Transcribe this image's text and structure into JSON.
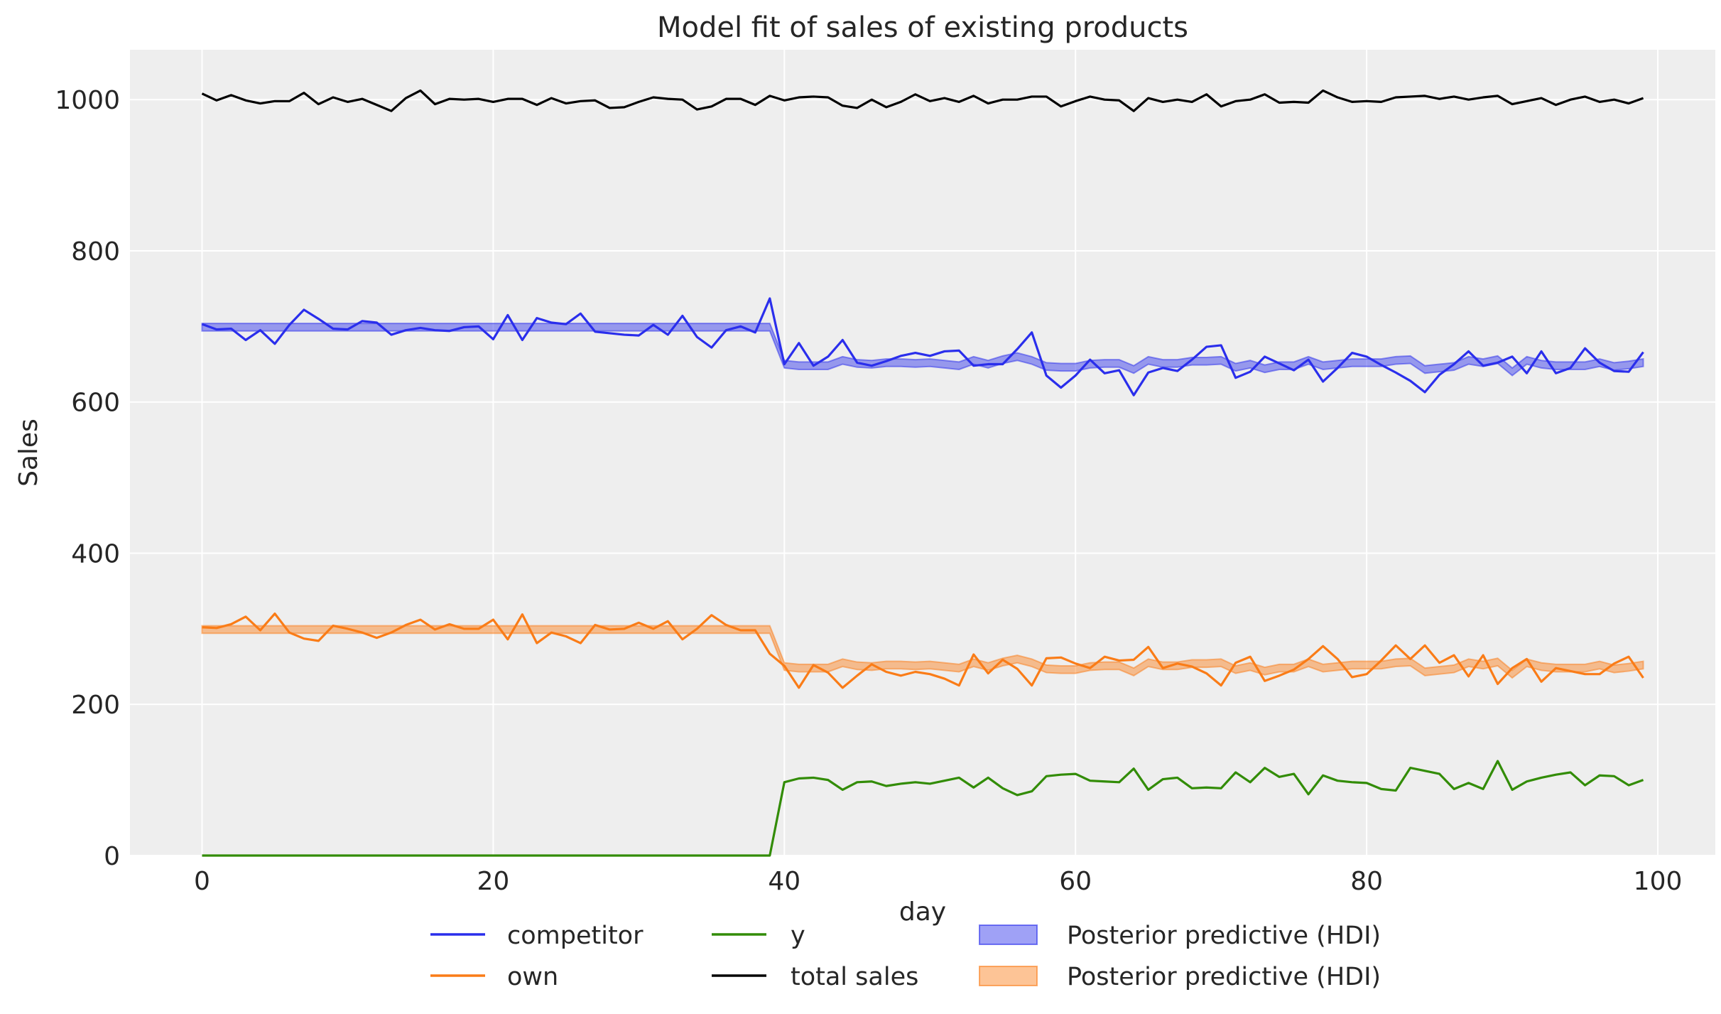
{
  "chart_data": {
    "type": "line",
    "title": "Model fit of sales of existing products",
    "xlabel": "day",
    "ylabel": "Sales",
    "xlim": [
      -4.95,
      103.95
    ],
    "ylim": [
      0,
      1066
    ],
    "xticks": [
      0,
      20,
      40,
      60,
      80,
      100
    ],
    "yticks": [
      0,
      200,
      400,
      600,
      800,
      1000
    ],
    "grid": true,
    "legend_placement": "bottom-center",
    "background": "#eeeeee",
    "hdi_half_width": 5,
    "series": [
      {
        "name": "competitor",
        "color": "#2a2eec",
        "values": [
          703,
          696,
          697,
          682,
          695,
          677,
          702,
          722,
          710,
          697,
          696,
          707,
          705,
          689,
          695,
          698,
          695,
          694,
          699,
          700,
          683,
          715,
          682,
          711,
          705,
          703,
          717,
          693,
          691,
          689,
          688,
          702,
          689,
          714,
          686,
          672,
          695,
          700,
          692,
          737,
          650,
          678,
          648,
          660,
          682,
          652,
          648,
          654,
          661,
          665,
          661,
          667,
          668,
          648,
          650,
          650,
          670,
          692,
          635,
          619,
          635,
          656,
          638,
          642,
          609,
          639,
          645,
          641,
          656,
          673,
          675,
          632,
          640,
          660,
          651,
          642,
          656,
          627,
          645,
          665,
          660,
          649,
          639,
          628,
          613,
          636,
          650,
          667,
          648,
          652,
          660,
          638,
          667,
          638,
          645,
          671,
          652,
          641,
          640,
          666
        ]
      },
      {
        "name": "own",
        "color": "#fa7c17",
        "values": [
          302,
          301,
          306,
          316,
          298,
          320,
          295,
          287,
          284,
          304,
          300,
          295,
          288,
          295,
          305,
          312,
          299,
          306,
          300,
          300,
          312,
          286,
          319,
          281,
          295,
          290,
          281,
          305,
          299,
          300,
          308,
          300,
          310,
          286,
          300,
          318,
          305,
          298,
          298,
          267,
          251,
          222,
          252,
          242,
          222,
          238,
          253,
          243,
          238,
          243,
          240,
          234,
          225,
          266,
          241,
          259,
          247,
          225,
          261,
          262,
          254,
          248,
          263,
          258,
          259,
          276,
          248,
          254,
          250,
          241,
          225,
          255,
          263,
          231,
          238,
          246,
          260,
          277,
          260,
          236,
          240,
          258,
          278,
          260,
          278,
          255,
          265,
          237,
          265,
          227,
          248,
          260,
          230,
          248,
          244,
          240,
          240,
          254,
          263,
          235
        ]
      },
      {
        "name": "y",
        "color": "#328c06",
        "values": [
          0,
          0,
          0,
          0,
          0,
          0,
          0,
          0,
          0,
          0,
          0,
          0,
          0,
          0,
          0,
          0,
          0,
          0,
          0,
          0,
          0,
          0,
          0,
          0,
          0,
          0,
          0,
          0,
          0,
          0,
          0,
          0,
          0,
          0,
          0,
          0,
          0,
          0,
          0,
          0,
          97,
          102,
          103,
          100,
          87,
          97,
          98,
          92,
          95,
          97,
          95,
          99,
          103,
          90,
          103,
          89,
          80,
          85,
          105,
          107,
          108,
          99,
          98,
          97,
          115,
          87,
          101,
          103,
          89,
          90,
          89,
          110,
          97,
          116,
          104,
          108,
          81,
          106,
          99,
          97,
          96,
          88,
          86,
          116,
          112,
          108,
          88,
          96,
          88,
          125,
          87,
          98,
          103,
          107,
          110,
          93,
          106,
          105,
          93,
          100
        ]
      },
      {
        "name": "total sales",
        "color": "#000000",
        "values": [
          1008,
          999,
          1006,
          999,
          995,
          998,
          998,
          1009,
          994,
          1003,
          997,
          1001,
          993,
          985,
          1002,
          1012,
          994,
          1001,
          1000,
          1001,
          997,
          1001,
          1001,
          993,
          1002,
          995,
          998,
          999,
          989,
          990,
          997,
          1003,
          1001,
          1000,
          987,
          991,
          1001,
          1001,
          993,
          1005,
          999,
          1003,
          1004,
          1003,
          992,
          989,
          1000,
          990,
          997,
          1007,
          998,
          1002,
          997,
          1005,
          995,
          1000,
          1000,
          1004,
          1004,
          991,
          998,
          1004,
          1000,
          999,
          985,
          1002,
          997,
          1000,
          997,
          1007,
          991,
          998,
          1000,
          1007,
          996,
          997,
          996,
          1012,
          1003,
          997,
          998,
          997,
          1003,
          1004,
          1005,
          1001,
          1004,
          1000,
          1003,
          1005,
          994,
          998,
          1002,
          993,
          1000,
          1004,
          997,
          1000,
          995,
          1002
        ]
      }
    ],
    "bands": [
      {
        "name": "Posterior predictive (HDI)",
        "color": "#2a2eec",
        "center": [
          699,
          699,
          699,
          699,
          699,
          699,
          699,
          699,
          699,
          699,
          699,
          699,
          699,
          699,
          699,
          699,
          699,
          699,
          699,
          699,
          699,
          699,
          699,
          699,
          699,
          699,
          699,
          699,
          699,
          699,
          699,
          699,
          699,
          699,
          699,
          699,
          699,
          699,
          699,
          699,
          650,
          648,
          648,
          648,
          655,
          651,
          650,
          652,
          652,
          651,
          652,
          650,
          648,
          655,
          650,
          656,
          660,
          655,
          647,
          646,
          646,
          650,
          651,
          651,
          643,
          655,
          651,
          651,
          654,
          654,
          655,
          646,
          650,
          644,
          648,
          648,
          655,
          648,
          650,
          652,
          652,
          652,
          655,
          656,
          643,
          645,
          647,
          655,
          652,
          656,
          640,
          655,
          650,
          648,
          648,
          648,
          652,
          647,
          649,
          652
        ]
      },
      {
        "name": "Posterior predictive (HDI)",
        "color": "#fa7c17",
        "center": [
          299,
          299,
          299,
          299,
          299,
          299,
          299,
          299,
          299,
          299,
          299,
          299,
          299,
          299,
          299,
          299,
          299,
          299,
          299,
          299,
          299,
          299,
          299,
          299,
          299,
          299,
          299,
          299,
          299,
          299,
          299,
          299,
          299,
          299,
          299,
          299,
          299,
          299,
          299,
          299,
          250,
          248,
          248,
          248,
          255,
          251,
          250,
          252,
          252,
          251,
          252,
          250,
          248,
          255,
          250,
          256,
          260,
          255,
          247,
          246,
          246,
          250,
          251,
          251,
          243,
          255,
          251,
          251,
          254,
          254,
          255,
          246,
          250,
          244,
          248,
          248,
          255,
          248,
          250,
          252,
          252,
          252,
          255,
          256,
          243,
          245,
          247,
          255,
          252,
          256,
          240,
          255,
          250,
          248,
          248,
          248,
          252,
          247,
          249,
          252
        ]
      }
    ]
  }
}
